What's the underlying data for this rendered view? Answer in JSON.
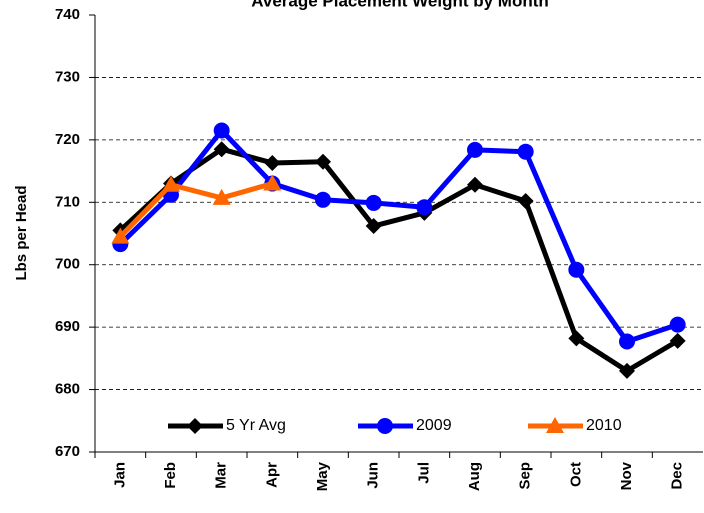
{
  "chart_data": {
    "type": "line",
    "title": "Average Placement Weight by Month",
    "y_label": "Lbs per Head",
    "categories": [
      "Jan",
      "Feb",
      "Mar",
      "Apr",
      "May",
      "Jun",
      "Jul",
      "Aug",
      "Sep",
      "Oct",
      "Nov",
      "Dec"
    ],
    "series": [
      {
        "name": "5 Yr Avg",
        "color": "#000000",
        "marker": "diamond",
        "values": [
          705.5,
          713,
          718.5,
          716.3,
          716.5,
          706.2,
          708.3,
          712.8,
          710.2,
          688.2,
          683,
          687.8
        ]
      },
      {
        "name": "2009",
        "color": "#0000ff",
        "marker": "circle",
        "values": [
          703.3,
          711.2,
          721.5,
          713,
          710.4,
          709.9,
          709.2,
          718.4,
          718.1,
          699.2,
          687.7,
          690.4
        ]
      },
      {
        "name": "2010",
        "color": "#ff6600",
        "marker": "triangle",
        "values": [
          704.5,
          712.8,
          710.7,
          713,
          null,
          null,
          null,
          null,
          null,
          null,
          null,
          null
        ]
      }
    ],
    "ylim": [
      670,
      740
    ],
    "yticks": [
      670,
      680,
      690,
      700,
      710,
      720,
      730,
      740
    ],
    "grid": true,
    "legend": "bottom"
  }
}
